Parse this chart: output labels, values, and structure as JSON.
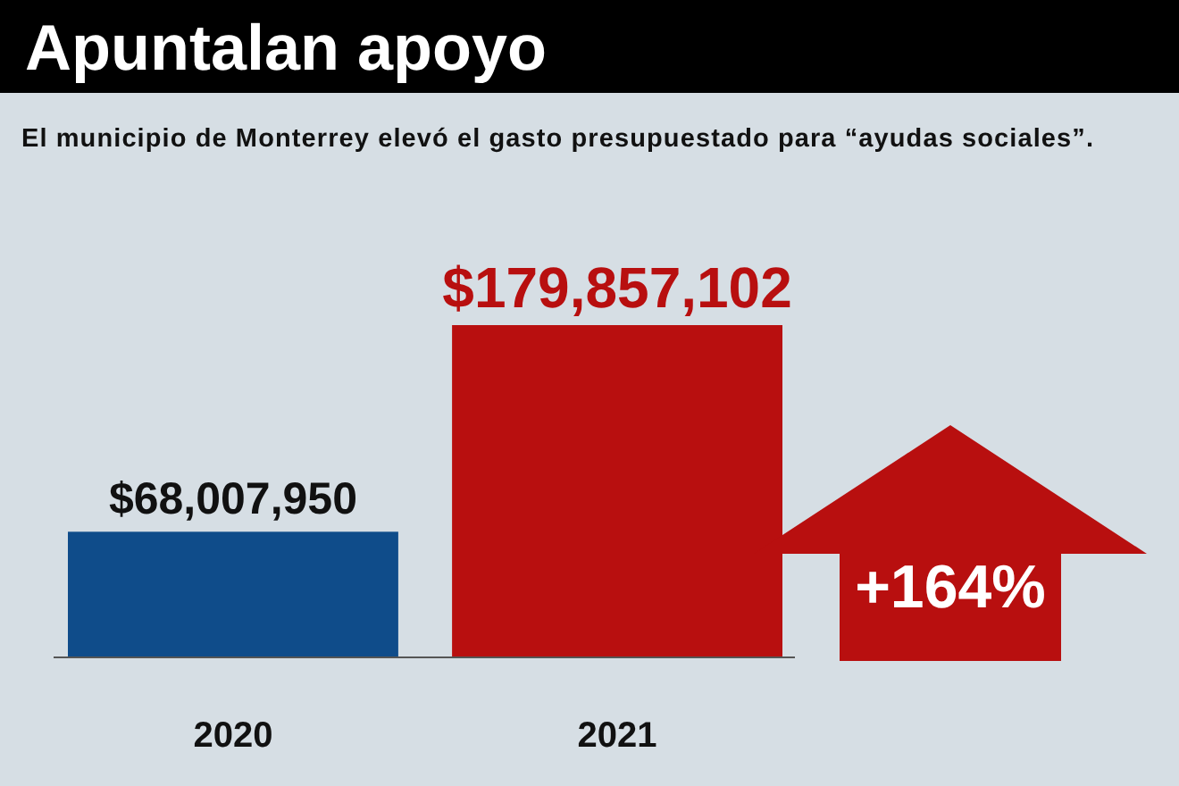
{
  "chart_data": {
    "type": "bar",
    "title": "Apuntalan apoyo",
    "subtitle": "El municipio de Monterrey elevó el gasto presupuestado para “ayudas sociales”.",
    "categories": [
      "2020",
      "2021"
    ],
    "values": [
      68007950,
      179857102
    ],
    "colors": [
      "#0f4c8a",
      "#b80f0f"
    ],
    "value_labels": [
      "$68,007,950",
      "$179,857,102"
    ],
    "annotations": [
      "+164%"
    ]
  }
}
